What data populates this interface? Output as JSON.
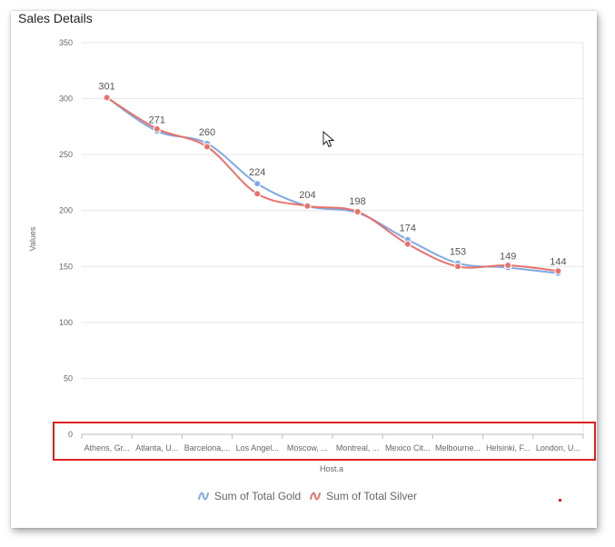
{
  "panel": {
    "title": "Sales Details"
  },
  "colors": {
    "gold": "#7fa9e6",
    "silver": "#e8726b",
    "highlight": "#e02020",
    "grid": "#e6e6e6"
  },
  "legend": {
    "items": [
      {
        "label": "Sum of Total Gold",
        "icon": "line-icon",
        "color": "#7fa9e6"
      },
      {
        "label": "Sum of Total Silver",
        "icon": "line-icon",
        "color": "#e8726b"
      }
    ]
  },
  "chart_data": {
    "type": "line",
    "title": "Sales Details",
    "xlabel": "Host.a",
    "ylabel": "Values",
    "ylim": [
      0,
      350
    ],
    "yticks": [
      0,
      50,
      100,
      150,
      200,
      250,
      300,
      350
    ],
    "grid": true,
    "legend_position": "bottom",
    "categories": [
      "Athens, Gr...",
      "Atlanta, U...",
      "Barcelona,...",
      "Los Angel...",
      "Moscow, ...",
      "Montreal, ...",
      "Mexico Cit...",
      "Melbourne...",
      "Helsinki, F...",
      "London, U..."
    ],
    "series": [
      {
        "name": "Sum of Total Gold",
        "values": [
          301,
          271,
          260,
          224,
          204,
          198,
          174,
          153,
          149,
          144
        ]
      },
      {
        "name": "Sum of Total Silver",
        "values": [
          301,
          273,
          257,
          215,
          204,
          199,
          170,
          150,
          151,
          146
        ]
      }
    ],
    "data_labels": [
      "301",
      "271",
      "260",
      "224",
      "204",
      "198",
      "174",
      "153",
      "149",
      "144"
    ],
    "highlight": "x-axis-labels"
  }
}
